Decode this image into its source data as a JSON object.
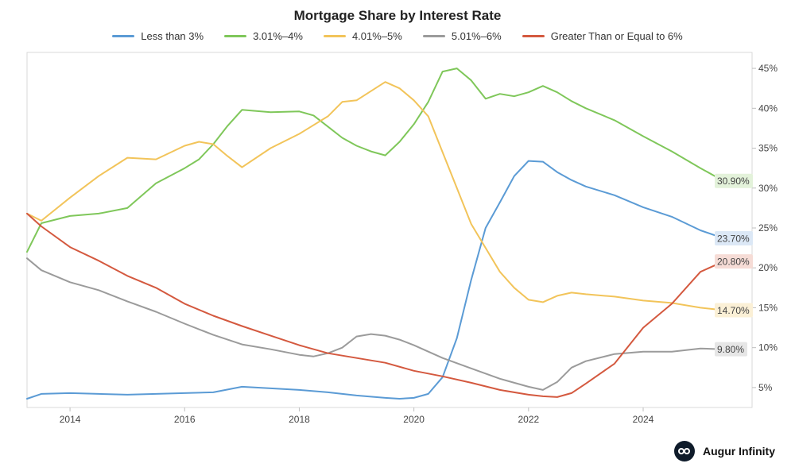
{
  "chart_data": {
    "type": "line",
    "title": "Mortgage Share by Interest Rate",
    "x_ticks": [
      "2014",
      "2016",
      "2018",
      "2020",
      "2022",
      "2024"
    ],
    "xlim": [
      2013.25,
      2025.9
    ],
    "y_ticks": [
      "5%",
      "10%",
      "15%",
      "20%",
      "25%",
      "30%",
      "35%",
      "40%",
      "45%"
    ],
    "ylim": [
      2.5,
      47
    ],
    "y_axis_side": "right",
    "grid": false,
    "legend_position": "top",
    "series": [
      {
        "name": "Less than 3%",
        "color": "#5b9bd5",
        "end_label": "23.70%",
        "label_bg": "#dce8f6",
        "points": [
          [
            2013.25,
            3.6
          ],
          [
            2013.5,
            4.2
          ],
          [
            2014,
            4.3
          ],
          [
            2014.5,
            4.2
          ],
          [
            2015,
            4.1
          ],
          [
            2015.5,
            4.2
          ],
          [
            2016,
            4.3
          ],
          [
            2016.5,
            4.4
          ],
          [
            2017,
            5.1
          ],
          [
            2017.5,
            4.9
          ],
          [
            2018,
            4.7
          ],
          [
            2018.5,
            4.4
          ],
          [
            2019,
            4.0
          ],
          [
            2019.5,
            3.7
          ],
          [
            2019.75,
            3.6
          ],
          [
            2020,
            3.7
          ],
          [
            2020.25,
            4.2
          ],
          [
            2020.5,
            6.3
          ],
          [
            2020.75,
            11.2
          ],
          [
            2021,
            18.5
          ],
          [
            2021.25,
            25.0
          ],
          [
            2021.5,
            28.2
          ],
          [
            2021.75,
            31.5
          ],
          [
            2022,
            33.4
          ],
          [
            2022.25,
            33.3
          ],
          [
            2022.5,
            32.0
          ],
          [
            2022.75,
            31.0
          ],
          [
            2023,
            30.2
          ],
          [
            2023.5,
            29.1
          ],
          [
            2024,
            27.6
          ],
          [
            2024.5,
            26.4
          ],
          [
            2025,
            24.7
          ],
          [
            2025.4,
            23.7
          ]
        ]
      },
      {
        "name": "3.01%–4%",
        "color": "#7fc75a",
        "end_label": "30.90%",
        "label_bg": "#e3f2da",
        "points": [
          [
            2013.25,
            22.0
          ],
          [
            2013.5,
            25.6
          ],
          [
            2014,
            26.5
          ],
          [
            2014.5,
            26.8
          ],
          [
            2015,
            27.5
          ],
          [
            2015.5,
            30.6
          ],
          [
            2016,
            32.5
          ],
          [
            2016.25,
            33.6
          ],
          [
            2016.5,
            35.5
          ],
          [
            2016.75,
            37.8
          ],
          [
            2017,
            39.8
          ],
          [
            2017.5,
            39.5
          ],
          [
            2018,
            39.6
          ],
          [
            2018.25,
            39.1
          ],
          [
            2018.5,
            37.7
          ],
          [
            2018.75,
            36.3
          ],
          [
            2019,
            35.3
          ],
          [
            2019.25,
            34.6
          ],
          [
            2019.5,
            34.1
          ],
          [
            2019.75,
            35.8
          ],
          [
            2020,
            38.0
          ],
          [
            2020.25,
            40.8
          ],
          [
            2020.5,
            44.6
          ],
          [
            2020.75,
            45.0
          ],
          [
            2021,
            43.5
          ],
          [
            2021.25,
            41.2
          ],
          [
            2021.5,
            41.8
          ],
          [
            2021.75,
            41.5
          ],
          [
            2022,
            42.0
          ],
          [
            2022.25,
            42.8
          ],
          [
            2022.5,
            42.0
          ],
          [
            2022.75,
            40.9
          ],
          [
            2023,
            40.0
          ],
          [
            2023.5,
            38.5
          ],
          [
            2024,
            36.5
          ],
          [
            2024.5,
            34.6
          ],
          [
            2025,
            32.5
          ],
          [
            2025.4,
            30.9
          ]
        ]
      },
      {
        "name": "4.01%–5%",
        "color": "#f2c45a",
        "end_label": "14.70%",
        "label_bg": "#fbf0d6",
        "points": [
          [
            2013.25,
            26.8
          ],
          [
            2013.5,
            25.9
          ],
          [
            2014,
            28.8
          ],
          [
            2014.5,
            31.5
          ],
          [
            2015,
            33.8
          ],
          [
            2015.5,
            33.6
          ],
          [
            2016,
            35.3
          ],
          [
            2016.25,
            35.8
          ],
          [
            2016.5,
            35.5
          ],
          [
            2016.75,
            34.0
          ],
          [
            2017,
            32.6
          ],
          [
            2017.5,
            35.0
          ],
          [
            2018,
            36.8
          ],
          [
            2018.5,
            39.0
          ],
          [
            2018.75,
            40.8
          ],
          [
            2019,
            41.0
          ],
          [
            2019.5,
            43.3
          ],
          [
            2019.75,
            42.5
          ],
          [
            2020,
            41.0
          ],
          [
            2020.25,
            39.0
          ],
          [
            2020.5,
            34.5
          ],
          [
            2020.75,
            30.0
          ],
          [
            2021,
            25.5
          ],
          [
            2021.25,
            22.5
          ],
          [
            2021.5,
            19.5
          ],
          [
            2021.75,
            17.5
          ],
          [
            2022,
            16.0
          ],
          [
            2022.25,
            15.7
          ],
          [
            2022.5,
            16.5
          ],
          [
            2022.75,
            16.9
          ],
          [
            2023,
            16.7
          ],
          [
            2023.5,
            16.4
          ],
          [
            2024,
            15.9
          ],
          [
            2024.5,
            15.6
          ],
          [
            2025,
            15.0
          ],
          [
            2025.4,
            14.7
          ]
        ]
      },
      {
        "name": "5.01%–6%",
        "color": "#9b9b9b",
        "end_label": "9.80%",
        "label_bg": "#e6e6e6",
        "points": [
          [
            2013.25,
            21.2
          ],
          [
            2013.5,
            19.7
          ],
          [
            2014,
            18.2
          ],
          [
            2014.5,
            17.2
          ],
          [
            2015,
            15.8
          ],
          [
            2015.5,
            14.5
          ],
          [
            2016,
            13.0
          ],
          [
            2016.5,
            11.6
          ],
          [
            2017,
            10.4
          ],
          [
            2017.5,
            9.8
          ],
          [
            2018,
            9.1
          ],
          [
            2018.25,
            8.9
          ],
          [
            2018.5,
            9.3
          ],
          [
            2018.75,
            10.0
          ],
          [
            2019,
            11.4
          ],
          [
            2019.25,
            11.7
          ],
          [
            2019.5,
            11.5
          ],
          [
            2019.75,
            11.0
          ],
          [
            2020,
            10.3
          ],
          [
            2020.5,
            8.7
          ],
          [
            2021,
            7.4
          ],
          [
            2021.5,
            6.1
          ],
          [
            2022,
            5.1
          ],
          [
            2022.25,
            4.7
          ],
          [
            2022.5,
            5.7
          ],
          [
            2022.75,
            7.5
          ],
          [
            2023,
            8.3
          ],
          [
            2023.5,
            9.2
          ],
          [
            2024,
            9.5
          ],
          [
            2024.5,
            9.5
          ],
          [
            2025,
            9.9
          ],
          [
            2025.4,
            9.8
          ]
        ]
      },
      {
        "name": "Greater Than or Equal to 6%",
        "color": "#d4593f",
        "end_label": "20.80%",
        "label_bg": "#f6dcd6",
        "points": [
          [
            2013.25,
            26.8
          ],
          [
            2013.5,
            25.2
          ],
          [
            2014,
            22.6
          ],
          [
            2014.5,
            20.9
          ],
          [
            2015,
            19.0
          ],
          [
            2015.5,
            17.5
          ],
          [
            2016,
            15.5
          ],
          [
            2016.5,
            14.0
          ],
          [
            2017,
            12.7
          ],
          [
            2017.5,
            11.5
          ],
          [
            2018,
            10.3
          ],
          [
            2018.5,
            9.3
          ],
          [
            2019,
            8.7
          ],
          [
            2019.5,
            8.1
          ],
          [
            2020,
            7.1
          ],
          [
            2020.5,
            6.4
          ],
          [
            2021,
            5.6
          ],
          [
            2021.5,
            4.7
          ],
          [
            2022,
            4.1
          ],
          [
            2022.25,
            3.9
          ],
          [
            2022.5,
            3.8
          ],
          [
            2022.75,
            4.3
          ],
          [
            2023,
            5.5
          ],
          [
            2023.5,
            8.0
          ],
          [
            2024,
            12.5
          ],
          [
            2024.5,
            15.5
          ],
          [
            2025,
            19.5
          ],
          [
            2025.4,
            20.8
          ]
        ]
      }
    ]
  },
  "brand": {
    "name": "Augur Infinity",
    "logo_icon": "infinity-logo-icon"
  }
}
